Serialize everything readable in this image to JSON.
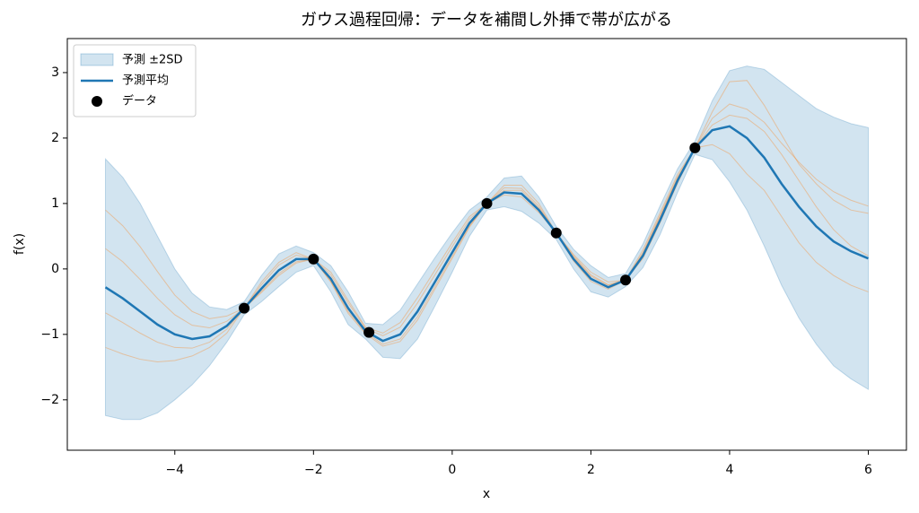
{
  "chart_data": {
    "type": "gp",
    "title": "ガウス過程回帰：データを補間し外挿で帯が広がる",
    "xlabel": "x",
    "ylabel": "f(x)",
    "xlim": [
      -5.55,
      6.55
    ],
    "ylim": [
      -2.77,
      3.52
    ],
    "xticks": [
      {
        "value": -4,
        "label": "−4"
      },
      {
        "value": -2,
        "label": "−2"
      },
      0,
      2,
      4,
      6
    ],
    "yticks": [
      {
        "value": -2,
        "label": "−2"
      },
      {
        "value": -1,
        "label": "−1"
      },
      0,
      1,
      2,
      3
    ],
    "legend": "upper left",
    "x": [
      -5,
      -4.75,
      -4.5,
      -4.25,
      -4,
      -3.75,
      -3.5,
      -3.25,
      -3,
      -2.75,
      -2.5,
      -2.25,
      -2,
      -1.75,
      -1.5,
      -1.25,
      -1,
      -0.75,
      -0.5,
      -0.25,
      0,
      0.25,
      0.5,
      0.75,
      1,
      1.25,
      1.5,
      1.75,
      2,
      2.25,
      2.5,
      2.75,
      3,
      3.25,
      3.5,
      3.75,
      4,
      4.25,
      4.5,
      4.75,
      5,
      5.25,
      5.5,
      5.75,
      6
    ],
    "band": {
      "name": "予測 ±2SD",
      "color": "#1f77b4",
      "upper": [
        1.68,
        1.4,
        1.0,
        0.5,
        0.0,
        -0.37,
        -0.58,
        -0.62,
        -0.5,
        -0.1,
        0.23,
        0.35,
        0.25,
        0.05,
        -0.35,
        -0.83,
        -0.85,
        -0.63,
        -0.23,
        0.17,
        0.55,
        0.9,
        1.1,
        1.39,
        1.42,
        1.1,
        0.65,
        0.3,
        0.05,
        -0.13,
        -0.07,
        0.38,
        0.97,
        1.53,
        1.95,
        2.57,
        3.03,
        3.1,
        3.05,
        2.85,
        2.65,
        2.45,
        2.32,
        2.22,
        2.16
      ],
      "lower": [
        -2.24,
        -2.3,
        -2.3,
        -2.2,
        -2.0,
        -1.77,
        -1.48,
        -1.12,
        -0.7,
        -0.5,
        -0.27,
        -0.05,
        0.05,
        -0.35,
        -0.85,
        -1.07,
        -1.35,
        -1.37,
        -1.07,
        -0.57,
        -0.05,
        0.5,
        0.9,
        0.95,
        0.88,
        0.7,
        0.45,
        0.0,
        -0.35,
        -0.43,
        -0.27,
        0.02,
        0.53,
        1.17,
        1.75,
        1.67,
        1.33,
        0.9,
        0.35,
        -0.25,
        -0.75,
        -1.15,
        -1.48,
        -1.68,
        -1.84
      ]
    },
    "samples": [
      {
        "color": "#ff7f0e",
        "values": [
          0.9,
          0.66,
          0.34,
          -0.04,
          -0.4,
          -0.65,
          -0.76,
          -0.72,
          -0.6,
          -0.24,
          0.06,
          0.21,
          0.15,
          -0.09,
          -0.52,
          -0.91,
          -1.02,
          -0.89,
          -0.52,
          -0.09,
          0.34,
          0.76,
          1.0,
          1.24,
          1.23,
          0.96,
          0.55,
          0.2,
          -0.09,
          -0.24,
          -0.17,
          0.25,
          0.82,
          1.4,
          1.85,
          2.3,
          2.52,
          2.44,
          2.24,
          1.92,
          1.63,
          1.37,
          1.18,
          1.05,
          0.96
        ]
      },
      {
        "color": "#ff7f0e",
        "values": [
          -0.67,
          -0.82,
          -0.98,
          -1.12,
          -1.2,
          -1.21,
          -1.12,
          -0.92,
          -0.6,
          -0.34,
          -0.07,
          0.11,
          0.15,
          -0.19,
          -0.65,
          -0.97,
          -1.15,
          -1.07,
          -0.73,
          -0.27,
          0.19,
          0.66,
          1.0,
          1.13,
          1.1,
          0.86,
          0.55,
          0.12,
          -0.19,
          -0.31,
          -0.17,
          0.16,
          0.71,
          1.31,
          1.85,
          1.9,
          1.76,
          1.45,
          1.2,
          0.8,
          0.4,
          0.1,
          -0.1,
          -0.25,
          -0.35
        ]
      },
      {
        "color": "#ff7f0e",
        "values": [
          0.31,
          0.11,
          -0.16,
          -0.45,
          -0.7,
          -0.86,
          -0.9,
          -0.8,
          -0.6,
          -0.36,
          -0.1,
          0.09,
          0.15,
          -0.2,
          -0.68,
          -0.99,
          -1.18,
          -1.11,
          -0.78,
          -0.31,
          0.16,
          0.64,
          1.0,
          1.2,
          1.2,
          0.93,
          0.55,
          0.18,
          -0.11,
          -0.25,
          -0.17,
          0.23,
          0.8,
          1.39,
          1.85,
          2.4,
          2.86,
          2.88,
          2.5,
          2.05,
          1.6,
          1.3,
          1.05,
          0.9,
          0.85
        ]
      },
      {
        "color": "#ff7f0e",
        "values": [
          -1.2,
          -1.3,
          -1.38,
          -1.42,
          -1.4,
          -1.33,
          -1.2,
          -0.98,
          -0.6,
          -0.2,
          0.1,
          0.25,
          0.15,
          -0.05,
          -0.48,
          -0.89,
          -0.98,
          -0.82,
          -0.44,
          -0.02,
          0.4,
          0.8,
          1.0,
          1.28,
          1.28,
          1.0,
          0.55,
          0.22,
          -0.05,
          -0.2,
          -0.17,
          0.29,
          0.86,
          1.44,
          1.85,
          2.2,
          2.35,
          2.3,
          2.1,
          1.75,
          1.35,
          0.95,
          0.6,
          0.35,
          0.2
        ]
      }
    ],
    "series": [
      {
        "name": "予測平均",
        "color": "#1f77b4",
        "values": [
          -0.28,
          -0.45,
          -0.65,
          -0.85,
          -1.0,
          -1.07,
          -1.03,
          -0.87,
          -0.6,
          -0.3,
          -0.02,
          0.15,
          0.15,
          -0.15,
          -0.6,
          -0.95,
          -1.1,
          -1.0,
          -0.65,
          -0.2,
          0.25,
          0.7,
          1.0,
          1.17,
          1.15,
          0.9,
          0.55,
          0.15,
          -0.15,
          -0.28,
          -0.17,
          0.2,
          0.75,
          1.35,
          1.85,
          2.12,
          2.18,
          2.0,
          1.7,
          1.3,
          0.95,
          0.65,
          0.42,
          0.27,
          0.16
        ]
      }
    ],
    "points": {
      "name": "データ",
      "color": "#000000",
      "x": [
        -3,
        -2,
        -1.2,
        0.5,
        1.5,
        2.5,
        3.5
      ],
      "y": [
        -0.6,
        0.15,
        -0.97,
        1.0,
        0.55,
        -0.17,
        1.85
      ]
    }
  }
}
